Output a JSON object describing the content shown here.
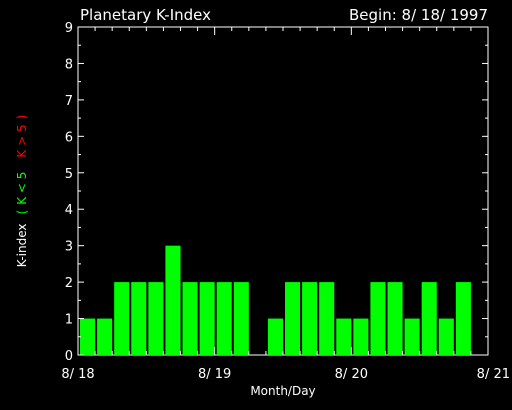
{
  "chart_data": {
    "type": "bar",
    "title": "Planetary K-Index",
    "subtitle": "Begin: 8/ 18/ 1997",
    "xlabel": "Month/Day",
    "ylabel_parts": [
      "K-index",
      "(",
      "K < 5",
      "K > 5",
      ")"
    ],
    "ylim": [
      0,
      9
    ],
    "yticks": [
      "0",
      "1",
      "2",
      "3",
      "4",
      "5",
      "6",
      "7",
      "8",
      "9"
    ],
    "x_tick_labels": [
      "8/ 18",
      "8/ 19",
      "8/ 20",
      "8/ 21"
    ],
    "values": [
      1,
      1,
      2,
      2,
      2,
      3,
      2,
      2,
      2,
      2,
      0,
      1,
      2,
      2,
      2,
      1,
      1,
      2,
      2,
      1,
      2,
      1,
      2,
      0
    ],
    "bins_per_day": 8,
    "days": 3,
    "grid": false,
    "colors": {
      "background": "#000000",
      "axes": "#ffffff",
      "bar_low": "#00ff00",
      "bar_high": "#ff0000",
      "label_low": "#00ff00",
      "label_high": "#ff0000"
    },
    "threshold": 5
  }
}
